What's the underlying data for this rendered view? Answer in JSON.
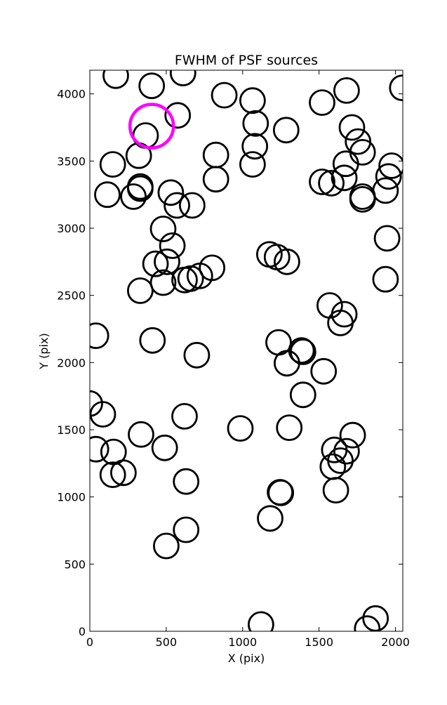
{
  "chart_data": {
    "type": "scatter",
    "title": "FWHM of PSF sources",
    "xlabel": "X (pix)",
    "ylabel": "Y (pix)",
    "xlim": [
      0,
      2048
    ],
    "ylim": [
      0,
      4176
    ],
    "xticks": [
      0,
      500,
      1000,
      1500,
      2000
    ],
    "yticks": [
      0,
      500,
      1000,
      1500,
      2000,
      2500,
      3000,
      3500,
      4000
    ],
    "marker": "open-circle",
    "marker_size_encodes": "FWHM",
    "grid": false,
    "series": [
      {
        "color": "#000000",
        "points": [
          {
            "x": 170,
            "y": 4135
          },
          {
            "x": 405,
            "y": 4060
          },
          {
            "x": 610,
            "y": 4155
          },
          {
            "x": 880,
            "y": 3990
          },
          {
            "x": 1065,
            "y": 3950
          },
          {
            "x": 1520,
            "y": 3935
          },
          {
            "x": 1680,
            "y": 4025
          },
          {
            "x": 2045,
            "y": 4045
          },
          {
            "x": 575,
            "y": 3840
          },
          {
            "x": 365,
            "y": 3690
          },
          {
            "x": 1085,
            "y": 3780
          },
          {
            "x": 1285,
            "y": 3730
          },
          {
            "x": 1715,
            "y": 3750
          },
          {
            "x": 1755,
            "y": 3645
          },
          {
            "x": 1785,
            "y": 3565
          },
          {
            "x": 1080,
            "y": 3610
          },
          {
            "x": 320,
            "y": 3540
          },
          {
            "x": 825,
            "y": 3545
          },
          {
            "x": 150,
            "y": 3475
          },
          {
            "x": 1065,
            "y": 3475
          },
          {
            "x": 1675,
            "y": 3480
          },
          {
            "x": 1975,
            "y": 3465
          },
          {
            "x": 1955,
            "y": 3385
          },
          {
            "x": 825,
            "y": 3365
          },
          {
            "x": 1665,
            "y": 3375
          },
          {
            "x": 1520,
            "y": 3345
          },
          {
            "x": 1580,
            "y": 3335
          },
          {
            "x": 330,
            "y": 3310
          },
          {
            "x": 330,
            "y": 3295
          },
          {
            "x": 530,
            "y": 3265
          },
          {
            "x": 115,
            "y": 3250
          },
          {
            "x": 285,
            "y": 3235
          },
          {
            "x": 1935,
            "y": 3280
          },
          {
            "x": 1785,
            "y": 3235
          },
          {
            "x": 1785,
            "y": 3215
          },
          {
            "x": 570,
            "y": 3170
          },
          {
            "x": 670,
            "y": 3170
          },
          {
            "x": 480,
            "y": 2995
          },
          {
            "x": 1945,
            "y": 2925
          },
          {
            "x": 540,
            "y": 2870
          },
          {
            "x": 1175,
            "y": 2805
          },
          {
            "x": 1225,
            "y": 2785
          },
          {
            "x": 1290,
            "y": 2750
          },
          {
            "x": 505,
            "y": 2750
          },
          {
            "x": 430,
            "y": 2735
          },
          {
            "x": 800,
            "y": 2705
          },
          {
            "x": 720,
            "y": 2645
          },
          {
            "x": 660,
            "y": 2625
          },
          {
            "x": 620,
            "y": 2615
          },
          {
            "x": 480,
            "y": 2595
          },
          {
            "x": 1935,
            "y": 2620
          },
          {
            "x": 330,
            "y": 2535
          },
          {
            "x": 1570,
            "y": 2425
          },
          {
            "x": 1665,
            "y": 2360
          },
          {
            "x": 1640,
            "y": 2295
          },
          {
            "x": 40,
            "y": 2200
          },
          {
            "x": 410,
            "y": 2165
          },
          {
            "x": 1235,
            "y": 2150
          },
          {
            "x": 1385,
            "y": 2090
          },
          {
            "x": 1395,
            "y": 2080
          },
          {
            "x": 700,
            "y": 2055
          },
          {
            "x": 1290,
            "y": 1995
          },
          {
            "x": 1530,
            "y": 1935
          },
          {
            "x": 1395,
            "y": 1760
          },
          {
            "x": 0,
            "y": 1695
          },
          {
            "x": 85,
            "y": 1615
          },
          {
            "x": 620,
            "y": 1600
          },
          {
            "x": 985,
            "y": 1510
          },
          {
            "x": 1305,
            "y": 1515
          },
          {
            "x": 335,
            "y": 1465
          },
          {
            "x": 1720,
            "y": 1460
          },
          {
            "x": 40,
            "y": 1355
          },
          {
            "x": 155,
            "y": 1335
          },
          {
            "x": 490,
            "y": 1365
          },
          {
            "x": 1600,
            "y": 1350
          },
          {
            "x": 1680,
            "y": 1340
          },
          {
            "x": 1640,
            "y": 1270
          },
          {
            "x": 1590,
            "y": 1225
          },
          {
            "x": 220,
            "y": 1180
          },
          {
            "x": 150,
            "y": 1165
          },
          {
            "x": 630,
            "y": 1115
          },
          {
            "x": 1610,
            "y": 1050
          },
          {
            "x": 1245,
            "y": 1035
          },
          {
            "x": 1250,
            "y": 1030
          },
          {
            "x": 1180,
            "y": 840
          },
          {
            "x": 630,
            "y": 755
          },
          {
            "x": 500,
            "y": 635
          },
          {
            "x": 1870,
            "y": 95
          },
          {
            "x": 1815,
            "y": 20
          },
          {
            "x": 1120,
            "y": 50
          }
        ]
      },
      {
        "color": "#ff00ff",
        "points": [
          {
            "x": 405,
            "y": 3760
          }
        ]
      }
    ]
  }
}
